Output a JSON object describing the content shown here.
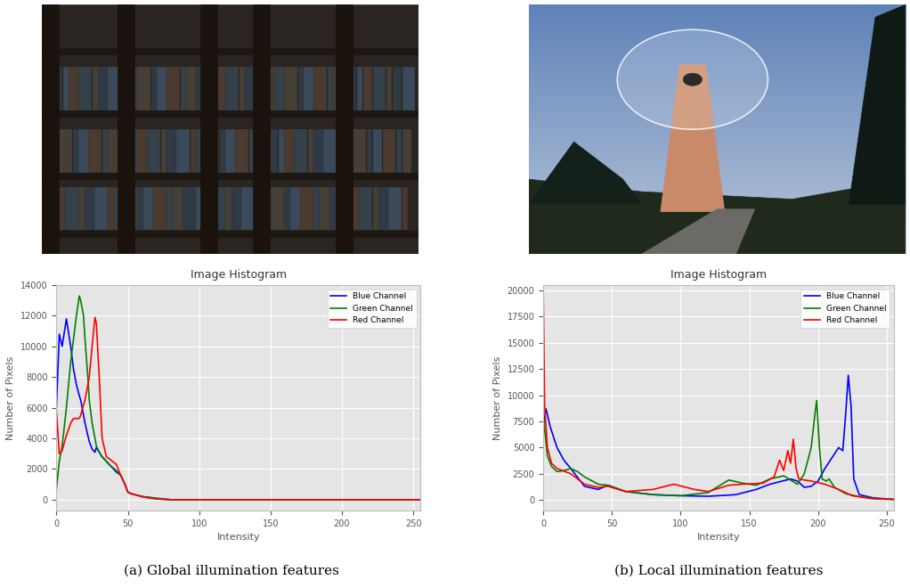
{
  "chart_data": [
    {
      "type": "line",
      "title": "Image Histogram",
      "x_label": "Intensity",
      "y_label": "Number of Pixels",
      "caption": "(a) Global illumination features",
      "x": [
        0,
        2,
        4,
        7,
        10,
        12,
        14,
        16,
        17,
        19,
        20,
        22,
        23,
        25,
        27,
        28,
        30,
        32,
        35,
        38,
        42,
        45,
        48,
        50,
        52,
        60,
        65,
        70,
        80,
        100,
        150,
        200,
        255
      ],
      "series": [
        {
          "name": "Blue Channel",
          "color": "#0000ff",
          "values": [
            6000,
            10800,
            10000,
            11800,
            10000,
            8500,
            7500,
            6800,
            6500,
            5500,
            5000,
            4200,
            3800,
            3300,
            3100,
            3400,
            3100,
            2800,
            2500,
            2200,
            1800,
            1600,
            1000,
            500,
            400,
            200,
            150,
            50,
            0,
            0,
            0,
            0,
            0
          ]
        },
        {
          "name": "Green Channel",
          "color": "#008000",
          "values": [
            700,
            2500,
            3500,
            6000,
            9000,
            10500,
            12000,
            13300,
            13000,
            12000,
            10500,
            8000,
            6500,
            5000,
            4000,
            3500,
            3100,
            2800,
            2500,
            2200,
            1900,
            1600,
            1000,
            500,
            400,
            200,
            150,
            100,
            0,
            0,
            0,
            0,
            0
          ]
        },
        {
          "name": "Red Channel",
          "color": "#ff0000",
          "values": [
            5800,
            3000,
            3200,
            4200,
            5000,
            5300,
            5300,
            5300,
            5500,
            6200,
            6500,
            7500,
            8000,
            10000,
            11900,
            11500,
            8000,
            4000,
            2800,
            2600,
            2300,
            1600,
            1000,
            500,
            400,
            200,
            100,
            50,
            0,
            0,
            0,
            0,
            0
          ]
        }
      ],
      "xlim": [
        0,
        255
      ],
      "xticks": [
        0,
        50,
        100,
        150,
        200,
        250
      ],
      "ylim": [
        -700,
        14000
      ],
      "yticks": [
        0,
        2000,
        4000,
        6000,
        8000,
        10000,
        12000,
        14000
      ],
      "grid": true,
      "legend": "upper right"
    },
    {
      "type": "line",
      "title": "Image Histogram",
      "x_label": "Intensity",
      "y_label": "Number of Pixels",
      "caption": "(b) Local illumination features",
      "series": [
        {
          "name": "Blue Channel",
          "color": "#0000ff",
          "x": [
            0,
            2,
            5,
            10,
            15,
            20,
            30,
            40,
            47,
            60,
            80,
            100,
            120,
            140,
            155,
            165,
            180,
            185,
            190,
            195,
            200,
            205,
            210,
            215,
            218,
            220,
            222,
            224,
            226,
            230,
            240,
            255
          ],
          "values": [
            7000,
            8700,
            7000,
            5000,
            3800,
            3000,
            1300,
            1000,
            1400,
            800,
            500,
            400,
            350,
            500,
            1000,
            1500,
            2000,
            1800,
            1200,
            1300,
            1800,
            3000,
            4000,
            5000,
            4700,
            8000,
            11900,
            9000,
            2000,
            500,
            200,
            50
          ]
        },
        {
          "name": "Green Channel",
          "color": "#008000",
          "x": [
            0,
            3,
            6,
            10,
            15,
            20,
            25,
            30,
            40,
            47,
            60,
            80,
            100,
            120,
            130,
            135,
            145,
            155,
            165,
            175,
            185,
            190,
            195,
            198,
            199,
            201,
            203,
            206,
            208,
            212,
            220,
            230,
            245,
            255
          ],
          "values": [
            8000,
            4200,
            3200,
            2700,
            2800,
            3000,
            2700,
            2200,
            1500,
            1400,
            800,
            500,
            400,
            700,
            1500,
            1900,
            1600,
            1400,
            2000,
            2300,
            1500,
            2500,
            5000,
            8500,
            9500,
            5000,
            2000,
            1800,
            2000,
            1200,
            600,
            300,
            100,
            50
          ]
        },
        {
          "name": "Red Channel",
          "color": "#ff0000",
          "x": [
            0,
            1,
            3,
            6,
            10,
            20,
            30,
            40,
            47,
            60,
            80,
            95,
            110,
            120,
            135,
            145,
            160,
            168,
            172,
            175,
            178,
            180,
            182,
            184,
            186,
            190,
            195,
            205,
            215,
            225,
            240,
            255
          ],
          "values": [
            20000,
            9000,
            5000,
            3500,
            3000,
            2500,
            1500,
            1200,
            1300,
            800,
            1000,
            1500,
            1000,
            800,
            1400,
            1500,
            1600,
            2200,
            3800,
            2800,
            4700,
            3500,
            5800,
            3000,
            2000,
            1900,
            1800,
            1500,
            1000,
            400,
            100,
            50
          ]
        }
      ],
      "xlim": [
        0,
        255
      ],
      "xticks": [
        0,
        50,
        100,
        150,
        200,
        250
      ],
      "ylim": [
        -1000,
        20500
      ],
      "yticks": [
        0,
        2500,
        5000,
        7500,
        10000,
        12500,
        15000,
        17500,
        20000
      ],
      "grid": true,
      "legend": "upper right"
    }
  ]
}
